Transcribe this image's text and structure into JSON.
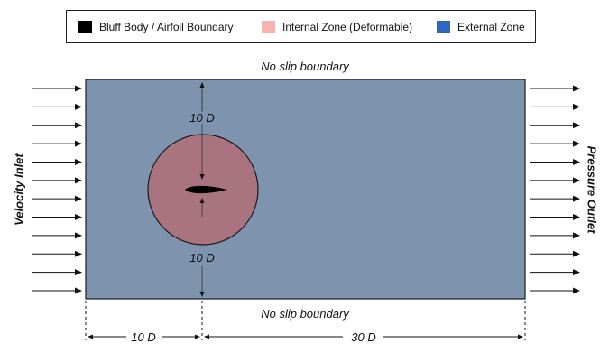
{
  "legend": [
    {
      "label": "Bluff Body / Airfoil Boundary",
      "color": "#000000",
      "icon": "black-square-swatch"
    },
    {
      "label": "Internal Zone (Deformable)",
      "color": "#f6b3b0",
      "icon": "pink-square-swatch"
    },
    {
      "label": "External Zone",
      "color": "#2f66c4",
      "icon": "blue-square-swatch"
    }
  ],
  "boundaries": {
    "top": "No slip boundary",
    "bottom": "No slip boundary",
    "inlet": "Velocity Inlet",
    "outlet": "Pressure Outlet"
  },
  "dimensions": {
    "upper": "10 D",
    "lower": "10 D",
    "upstream": "10 D",
    "downstream": "30 D"
  },
  "colors": {
    "domain_fill": "#7d93ae",
    "circle_fill": "#a9737f",
    "airfoil": "#000000",
    "arrow": "#111111"
  }
}
